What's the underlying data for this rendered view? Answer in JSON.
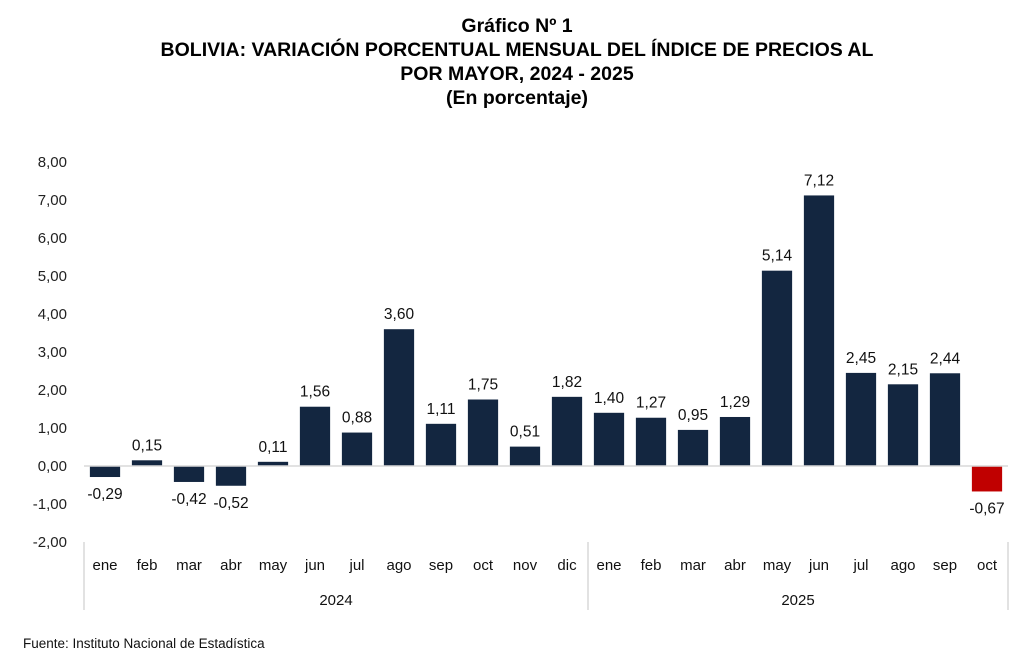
{
  "chart_data": {
    "type": "bar",
    "title_lines": [
      "Gráfico Nº 1",
      "BOLIVIA: VARIACIÓN PORCENTUAL MENSUAL DEL ÍNDICE DE PRECIOS AL",
      "POR MAYOR, 2024 - 2025",
      "(En porcentaje)"
    ],
    "xlabel": "",
    "ylabel": "",
    "ylim": [
      -2,
      8
    ],
    "yticks": [
      8,
      7,
      6,
      5,
      4,
      3,
      2,
      1,
      0,
      -1,
      -2
    ],
    "ytick_labels": [
      "8,00",
      "7,00",
      "6,00",
      "5,00",
      "4,00",
      "3,00",
      "2,00",
      "1,00",
      "0,00",
      "-1,00",
      "-2,00"
    ],
    "grid": false,
    "legend": "none",
    "groups": [
      {
        "year": "2024",
        "categories": [
          "ene",
          "feb",
          "mar",
          "abr",
          "may",
          "jun",
          "jul",
          "ago",
          "sep",
          "oct",
          "nov",
          "dic"
        ]
      },
      {
        "year": "2025",
        "categories": [
          "ene",
          "feb",
          "mar",
          "abr",
          "may",
          "jun",
          "jul",
          "ago",
          "sep",
          "oct"
        ]
      }
    ],
    "categories": [
      "ene",
      "feb",
      "mar",
      "abr",
      "may",
      "jun",
      "jul",
      "ago",
      "sep",
      "oct",
      "nov",
      "dic",
      "ene",
      "feb",
      "mar",
      "abr",
      "may",
      "jun",
      "jul",
      "ago",
      "sep",
      "oct"
    ],
    "values": [
      -0.29,
      0.15,
      -0.42,
      -0.52,
      0.11,
      1.56,
      0.88,
      3.6,
      1.11,
      1.75,
      0.51,
      1.82,
      1.4,
      1.27,
      0.95,
      1.29,
      5.14,
      7.12,
      2.45,
      2.15,
      2.44,
      -0.67
    ],
    "data_labels": [
      "-0,29",
      "0,15",
      "-0,42",
      "-0,52",
      "0,11",
      "1,56",
      "0,88",
      "3,60",
      "1,11",
      "1,75",
      "0,51",
      "1,82",
      "1,40",
      "1,27",
      "0,95",
      "1,29",
      "5,14",
      "7,12",
      "2,45",
      "2,15",
      "2,44",
      "-0,67"
    ],
    "highlight_index": 21,
    "colors": {
      "bar": "#132640",
      "highlight": "#c00000",
      "axis": "#d9d9d9"
    }
  },
  "footer": {
    "source": "Fuente: Instituto Nacional de Estadística"
  }
}
